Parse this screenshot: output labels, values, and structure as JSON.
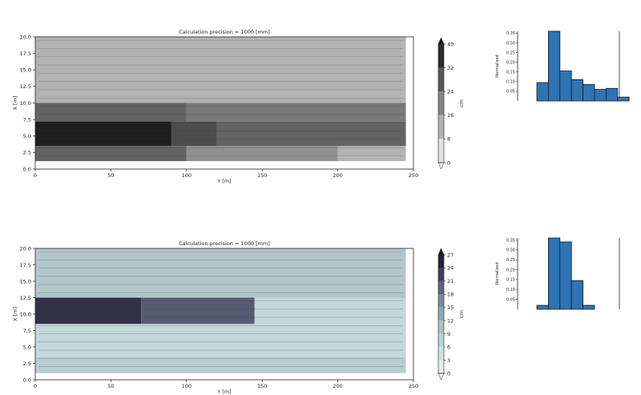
{
  "chart_data": [
    {
      "type": "heatmap",
      "title": "Calculation precision = 1000 [mm]",
      "xlabel": "Y [m]",
      "ylabel": "X [m]",
      "xlim": [
        0,
        250
      ],
      "ylim": [
        0,
        20
      ],
      "xticks": [
        "0",
        "50",
        "100",
        "150",
        "200",
        "250"
      ],
      "yticks": [
        "0.0",
        "2.5",
        "5.0",
        "7.5",
        "10.0",
        "12.5",
        "15.0",
        "17.5",
        "20.0"
      ],
      "colorbar": {
        "label": "cm",
        "ticks": [
          "0",
          "8",
          "16",
          "24",
          "32",
          "40"
        ],
        "range": [
          0,
          40
        ],
        "colormap": "greys"
      },
      "bands": [
        {
          "y0": 1.2,
          "y1": 3.5,
          "segments": [
            [
              0,
              100,
              26
            ],
            [
              100,
              200,
              18
            ],
            [
              200,
              245,
              12
            ]
          ]
        },
        {
          "y0": 3.5,
          "y1": 7.2,
          "segments": [
            [
              0,
              90,
              38
            ],
            [
              90,
              120,
              30
            ],
            [
              120,
              245,
              26
            ]
          ]
        },
        {
          "y0": 7.2,
          "y1": 10.0,
          "segments": [
            [
              0,
              100,
              26
            ],
            [
              100,
              245,
              22
            ]
          ]
        },
        {
          "y0": 10.0,
          "y1": 20.0,
          "segments": [
            [
              0,
              245,
              12
            ]
          ]
        }
      ],
      "histogram": {
        "ylabel": "Normalized",
        "yticks": [
          "0.05",
          "0.10",
          "0.15",
          "0.20",
          "0.25",
          "0.30",
          "0.35"
        ],
        "ylim": [
          0,
          0.36
        ],
        "values": [
          0.095,
          0.36,
          0.155,
          0.11,
          0.085,
          0.06,
          0.065,
          0.02
        ]
      }
    },
    {
      "type": "heatmap",
      "title": "Calculation precision = 1000 [mm]",
      "xlabel": "Y [m]",
      "ylabel": "X [m]",
      "xlim": [
        0,
        250
      ],
      "ylim": [
        0,
        20
      ],
      "xticks": [
        "0",
        "50",
        "100",
        "150",
        "200",
        "250"
      ],
      "yticks": [
        "0.0",
        "2.5",
        "5.0",
        "7.5",
        "10.0",
        "12.5",
        "15.0",
        "17.5",
        "20.0"
      ],
      "colorbar": {
        "label": "cm",
        "ticks": [
          "0",
          "3",
          "6",
          "9",
          "12",
          "15",
          "18",
          "21",
          "24",
          "27"
        ],
        "range": [
          0,
          27
        ],
        "colormap": "bone"
      },
      "bands": [
        {
          "y0": 1.0,
          "y1": 3.5,
          "segments": [
            [
              0,
              245,
              8
            ]
          ]
        },
        {
          "y0": 3.5,
          "y1": 8.5,
          "segments": [
            [
              0,
              245,
              6
            ]
          ]
        },
        {
          "y0": 8.5,
          "y1": 12.5,
          "segments": [
            [
              0,
              70,
              24
            ],
            [
              70,
              145,
              20
            ],
            [
              145,
              245,
              6
            ]
          ]
        },
        {
          "y0": 12.5,
          "y1": 20.0,
          "segments": [
            [
              0,
              245,
              9
            ]
          ]
        }
      ],
      "histogram": {
        "ylabel": "Normalized",
        "yticks": [
          "0.05",
          "0.10",
          "0.15",
          "0.20",
          "0.25",
          "0.30",
          "0.35"
        ],
        "ylim": [
          0,
          0.36
        ],
        "values": [
          0.02,
          0.36,
          0.34,
          0.145,
          0.02
        ]
      }
    }
  ]
}
